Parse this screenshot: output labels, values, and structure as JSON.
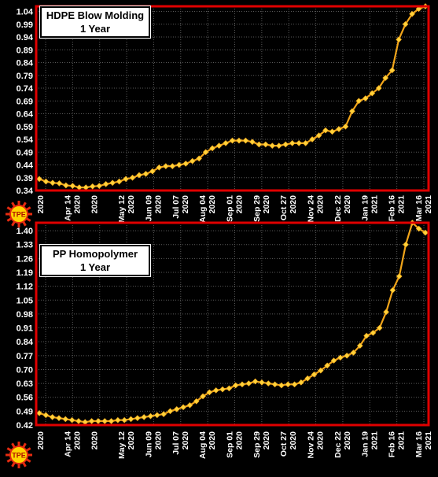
{
  "colors": {
    "background": "#000000",
    "frame": "#e00000",
    "grid": "#5a5a5a",
    "series": "#f2a51a",
    "marker": "#ffd23a",
    "text": "#ffffff",
    "logo_outer": "#e52b10",
    "logo_inner": "#ffd400"
  },
  "logo": {
    "text": "TPE",
    "icon": "sun-logo-icon"
  },
  "x_ticks": [
    {
      "label": "2020",
      "label2": ""
    },
    {
      "label": "Apr 14",
      "label2": "2020"
    },
    {
      "label": "2020",
      "label2": ""
    },
    {
      "label": "May 12",
      "label2": "2020"
    },
    {
      "label": "Jun 09",
      "label2": "2020"
    },
    {
      "label": "Jul 07",
      "label2": "2020"
    },
    {
      "label": "Aug 04",
      "label2": "2020"
    },
    {
      "label": "Sep 01",
      "label2": "2020"
    },
    {
      "label": "Sep 29",
      "label2": "2020"
    },
    {
      "label": "Oct 27",
      "label2": "2020"
    },
    {
      "label": "Nov 24",
      "label2": "2020"
    },
    {
      "label": "Dec 22",
      "label2": "2020"
    },
    {
      "label": "Jan 19",
      "label2": "2021"
    },
    {
      "label": "Feb 16",
      "label2": "2021"
    },
    {
      "label": "Mar 16",
      "label2": "2021"
    }
  ],
  "chart_data": [
    {
      "type": "line",
      "title_line1": "HDPE Blow Molding",
      "title_line2": "1 Year",
      "yticks": [
        "0.34",
        "0.39",
        "0.44",
        "0.49",
        "0.54",
        "0.59",
        "0.64",
        "0.69",
        "0.74",
        "0.79",
        "0.84",
        "0.89",
        "0.94",
        "0.99",
        "1.04"
      ],
      "ylim": [
        0.34,
        1.06
      ],
      "grid": true,
      "values": [
        0.385,
        0.375,
        0.37,
        0.368,
        0.36,
        0.358,
        0.352,
        0.352,
        0.356,
        0.358,
        0.365,
        0.37,
        0.375,
        0.385,
        0.39,
        0.4,
        0.405,
        0.415,
        0.43,
        0.435,
        0.435,
        0.44,
        0.445,
        0.455,
        0.465,
        0.49,
        0.505,
        0.515,
        0.525,
        0.535,
        0.535,
        0.535,
        0.53,
        0.52,
        0.52,
        0.515,
        0.515,
        0.52,
        0.525,
        0.525,
        0.525,
        0.54,
        0.555,
        0.575,
        0.57,
        0.58,
        0.59,
        0.65,
        0.69,
        0.7,
        0.72,
        0.74,
        0.78,
        0.81,
        0.93,
        0.99,
        1.03,
        1.05,
        1.06
      ]
    },
    {
      "type": "line",
      "title_line1": "PP Homopolymer",
      "title_line2": "1 Year",
      "yticks": [
        "0.42",
        "0.49",
        "0.56",
        "0.63",
        "0.70",
        "0.77",
        "0.84",
        "0.91",
        "0.98",
        "1.05",
        "1.12",
        "1.19",
        "1.26",
        "1.33",
        "1.40"
      ],
      "ylim": [
        0.42,
        1.44
      ],
      "grid": true,
      "values": [
        0.48,
        0.47,
        0.46,
        0.455,
        0.45,
        0.445,
        0.44,
        0.435,
        0.44,
        0.44,
        0.44,
        0.44,
        0.445,
        0.445,
        0.45,
        0.455,
        0.46,
        0.465,
        0.47,
        0.475,
        0.49,
        0.5,
        0.51,
        0.52,
        0.54,
        0.565,
        0.585,
        0.595,
        0.6,
        0.605,
        0.62,
        0.625,
        0.63,
        0.64,
        0.635,
        0.63,
        0.625,
        0.62,
        0.625,
        0.625,
        0.635,
        0.655,
        0.675,
        0.695,
        0.72,
        0.745,
        0.76,
        0.77,
        0.785,
        0.82,
        0.87,
        0.885,
        0.91,
        0.99,
        1.1,
        1.17,
        1.33,
        1.44,
        1.41,
        1.39
      ]
    }
  ]
}
